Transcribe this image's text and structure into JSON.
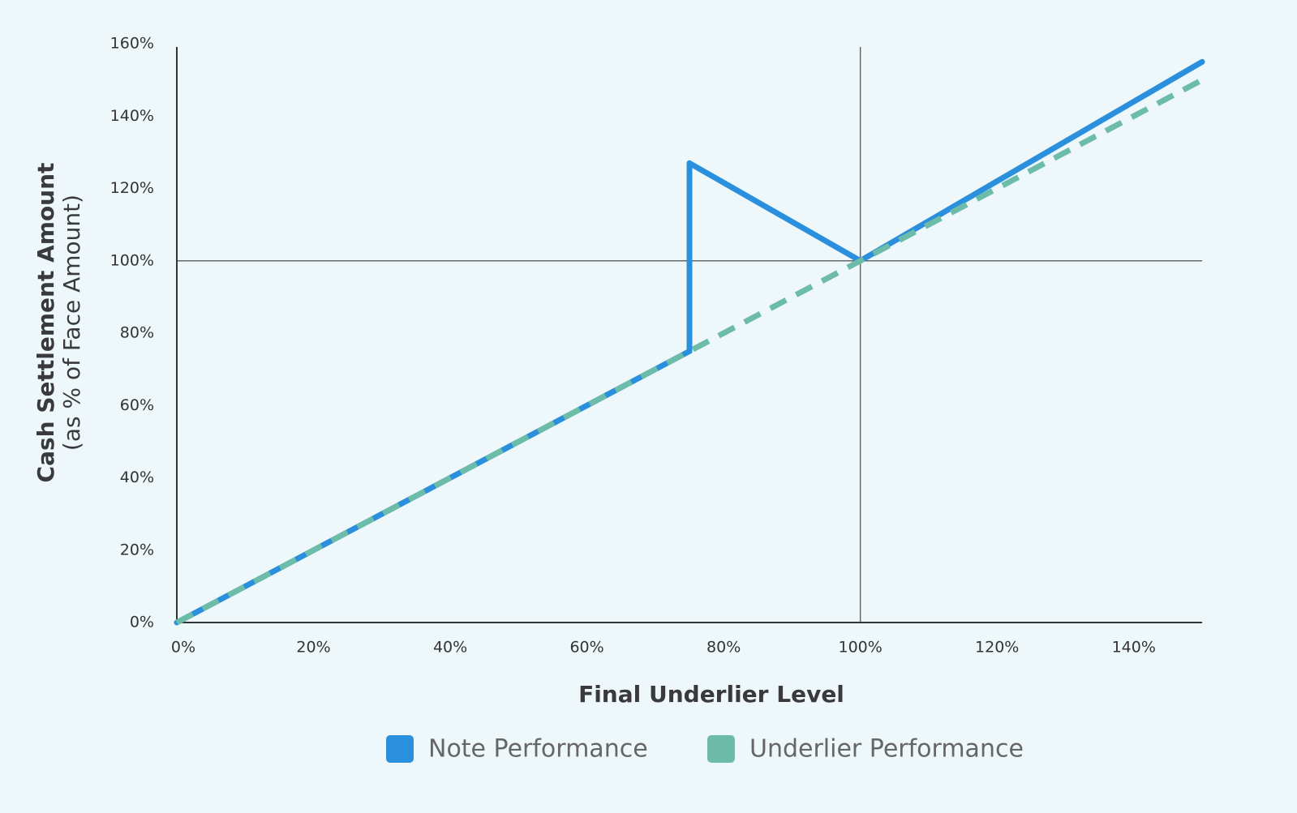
{
  "chart_data": {
    "type": "line",
    "y_label": "Cash Settlement Amount",
    "y_sublabel": "(as % of Face Amount)",
    "x_label": "Final Underlier Level",
    "xlim": [
      0,
      150
    ],
    "ylim": [
      0,
      160
    ],
    "xticks": [
      {
        "value": 0,
        "label": "0%"
      },
      {
        "value": 20,
        "label": "20%"
      },
      {
        "value": 40,
        "label": "40%"
      },
      {
        "value": 60,
        "label": "60%"
      },
      {
        "value": 80,
        "label": "80%"
      },
      {
        "value": 100,
        "label": "100%"
      },
      {
        "value": 120,
        "label": "120%"
      },
      {
        "value": 140,
        "label": "140%"
      }
    ],
    "yticks": [
      {
        "value": 0,
        "label": "0%"
      },
      {
        "value": 20,
        "label": "20%"
      },
      {
        "value": 40,
        "label": "40%"
      },
      {
        "value": 60,
        "label": "60%"
      },
      {
        "value": 80,
        "label": "80%"
      },
      {
        "value": 100,
        "label": "100%"
      },
      {
        "value": 120,
        "label": "120%"
      },
      {
        "value": 140,
        "label": "140%"
      },
      {
        "value": 160,
        "label": "160%"
      }
    ],
    "x_reference": 100,
    "y_reference": 100,
    "legend": "bottom",
    "series": [
      {
        "name": "Note Performance",
        "color": "#2a8fdc",
        "dashed": false,
        "x": [
          0,
          75,
          75,
          100,
          150
        ],
        "values": [
          0,
          75,
          127,
          100,
          155
        ]
      },
      {
        "name": "Underlier Performance",
        "color": "#6dbcaa",
        "dashed": true,
        "x": [
          0,
          150
        ],
        "values": [
          0,
          150
        ]
      }
    ]
  }
}
